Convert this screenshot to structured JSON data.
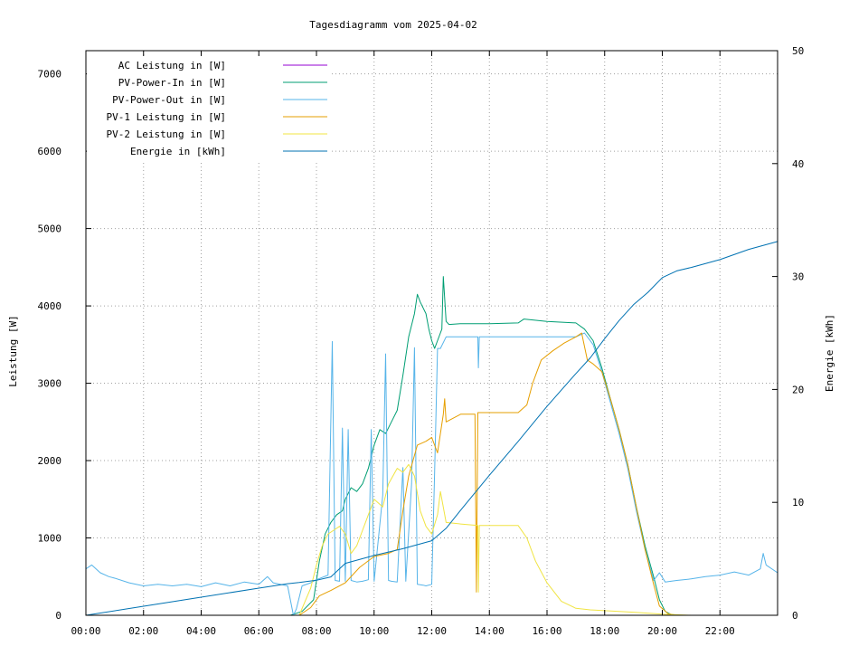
{
  "chart_data": {
    "type": "line",
    "title": "Tagesdiagramm vom 2025-04-02",
    "xlabel": "",
    "ylabel": "Leistung [W]",
    "y2label": "Energie [kWh]",
    "xlim_hours": [
      0,
      24
    ],
    "ylim": [
      0,
      7300
    ],
    "y2lim": [
      0,
      50
    ],
    "x_ticks": [
      "00:00",
      "02:00",
      "04:00",
      "06:00",
      "08:00",
      "10:00",
      "12:00",
      "14:00",
      "16:00",
      "18:00",
      "20:00",
      "22:00"
    ],
    "y_ticks": [
      0,
      1000,
      2000,
      3000,
      4000,
      5000,
      6000,
      7000
    ],
    "y2_ticks": [
      0,
      10,
      20,
      30,
      40,
      50
    ],
    "grid": true,
    "legend_position": "top-left",
    "series": [
      {
        "name": "AC Leistung in [W]",
        "color": "#9400d3",
        "axis": "y",
        "points": []
      },
      {
        "name": "PV-Power-In in [W]",
        "color": "#009e73",
        "axis": "y",
        "points": [
          [
            0,
            0
          ],
          [
            7.1,
            0
          ],
          [
            7.5,
            50
          ],
          [
            7.9,
            200
          ],
          [
            8.1,
            700
          ],
          [
            8.3,
            1050
          ],
          [
            8.5,
            1200
          ],
          [
            8.7,
            1300
          ],
          [
            8.9,
            1350
          ],
          [
            9.0,
            1500
          ],
          [
            9.2,
            1650
          ],
          [
            9.4,
            1600
          ],
          [
            9.6,
            1700
          ],
          [
            9.8,
            1900
          ],
          [
            10.0,
            2200
          ],
          [
            10.2,
            2400
          ],
          [
            10.4,
            2350
          ],
          [
            10.6,
            2500
          ],
          [
            10.8,
            2650
          ],
          [
            11.0,
            3100
          ],
          [
            11.2,
            3600
          ],
          [
            11.4,
            3900
          ],
          [
            11.5,
            4150
          ],
          [
            11.6,
            4050
          ],
          [
            11.8,
            3900
          ],
          [
            11.9,
            3700
          ],
          [
            12.0,
            3550
          ],
          [
            12.1,
            3450
          ],
          [
            12.2,
            3550
          ],
          [
            12.35,
            3700
          ],
          [
            12.4,
            4380
          ],
          [
            12.5,
            3800
          ],
          [
            12.6,
            3760
          ],
          [
            13.0,
            3770
          ],
          [
            14.0,
            3770
          ],
          [
            15.0,
            3780
          ],
          [
            15.2,
            3830
          ],
          [
            16.0,
            3800
          ],
          [
            17.0,
            3780
          ],
          [
            17.3,
            3700
          ],
          [
            17.6,
            3550
          ],
          [
            17.9,
            3200
          ],
          [
            18.2,
            2800
          ],
          [
            18.5,
            2400
          ],
          [
            18.8,
            1950
          ],
          [
            19.1,
            1400
          ],
          [
            19.4,
            900
          ],
          [
            19.7,
            500
          ],
          [
            19.9,
            200
          ],
          [
            20.1,
            50
          ],
          [
            20.3,
            10
          ],
          [
            20.6,
            0
          ],
          [
            24,
            0
          ]
        ]
      },
      {
        "name": "PV-Power-Out in [W]",
        "color": "#56b4e9",
        "axis": "y",
        "points": [
          [
            0,
            600
          ],
          [
            0.2,
            650
          ],
          [
            0.5,
            550
          ],
          [
            0.8,
            500
          ],
          [
            1.0,
            480
          ],
          [
            1.5,
            420
          ],
          [
            2.0,
            380
          ],
          [
            2.5,
            400
          ],
          [
            3.0,
            380
          ],
          [
            3.5,
            400
          ],
          [
            4.0,
            370
          ],
          [
            4.5,
            420
          ],
          [
            5.0,
            380
          ],
          [
            5.5,
            430
          ],
          [
            6.0,
            400
          ],
          [
            6.3,
            500
          ],
          [
            6.5,
            420
          ],
          [
            7.0,
            380
          ],
          [
            7.2,
            0
          ],
          [
            7.3,
            80
          ],
          [
            7.5,
            380
          ],
          [
            7.8,
            420
          ],
          [
            8.0,
            460
          ],
          [
            8.4,
            520
          ],
          [
            8.55,
            3540
          ],
          [
            8.65,
            450
          ],
          [
            8.8,
            440
          ],
          [
            8.9,
            2420
          ],
          [
            9.0,
            440
          ],
          [
            9.1,
            2400
          ],
          [
            9.2,
            450
          ],
          [
            9.4,
            430
          ],
          [
            9.6,
            440
          ],
          [
            9.8,
            460
          ],
          [
            9.9,
            2400
          ],
          [
            10.0,
            440
          ],
          [
            10.3,
            1550
          ],
          [
            10.4,
            3380
          ],
          [
            10.5,
            450
          ],
          [
            10.6,
            440
          ],
          [
            10.8,
            430
          ],
          [
            11.0,
            1910
          ],
          [
            11.1,
            440
          ],
          [
            11.3,
            1700
          ],
          [
            11.4,
            3460
          ],
          [
            11.5,
            400
          ],
          [
            11.7,
            390
          ],
          [
            11.8,
            380
          ],
          [
            12.0,
            400
          ],
          [
            12.1,
            1850
          ],
          [
            12.2,
            3450
          ],
          [
            12.3,
            3450
          ],
          [
            12.5,
            3600
          ],
          [
            13.0,
            3600
          ],
          [
            13.6,
            3600
          ],
          [
            13.62,
            3200
          ],
          [
            13.65,
            3600
          ],
          [
            14.0,
            3600
          ],
          [
            15.0,
            3600
          ],
          [
            16.0,
            3600
          ],
          [
            17.0,
            3600
          ],
          [
            17.3,
            3650
          ],
          [
            17.6,
            3500
          ],
          [
            17.9,
            3150
          ],
          [
            18.2,
            2750
          ],
          [
            18.5,
            2350
          ],
          [
            18.8,
            1900
          ],
          [
            19.1,
            1350
          ],
          [
            19.4,
            850
          ],
          [
            19.7,
            450
          ],
          [
            19.9,
            550
          ],
          [
            20.1,
            430
          ],
          [
            20.5,
            450
          ],
          [
            21.0,
            470
          ],
          [
            21.5,
            500
          ],
          [
            22.0,
            520
          ],
          [
            22.5,
            560
          ],
          [
            23.0,
            520
          ],
          [
            23.4,
            600
          ],
          [
            23.5,
            800
          ],
          [
            23.6,
            650
          ],
          [
            24,
            550
          ]
        ]
      },
      {
        "name": "PV-1 Leistung in [W]",
        "color": "#e69f00",
        "axis": "y",
        "points": [
          [
            0,
            0
          ],
          [
            7.4,
            0
          ],
          [
            7.8,
            100
          ],
          [
            8.1,
            250
          ],
          [
            8.5,
            320
          ],
          [
            9.0,
            420
          ],
          [
            9.5,
            620
          ],
          [
            10.0,
            760
          ],
          [
            10.5,
            800
          ],
          [
            10.8,
            850
          ],
          [
            11.0,
            1350
          ],
          [
            11.2,
            1800
          ],
          [
            11.5,
            2200
          ],
          [
            11.8,
            2250
          ],
          [
            12.0,
            2300
          ],
          [
            12.2,
            2100
          ],
          [
            12.4,
            2600
          ],
          [
            12.45,
            2800
          ],
          [
            12.5,
            2500
          ],
          [
            13.0,
            2600
          ],
          [
            13.5,
            2600
          ],
          [
            13.55,
            300
          ],
          [
            13.6,
            2620
          ],
          [
            14.0,
            2620
          ],
          [
            15.0,
            2620
          ],
          [
            15.3,
            2720
          ],
          [
            15.5,
            3000
          ],
          [
            15.8,
            3300
          ],
          [
            16.2,
            3420
          ],
          [
            16.6,
            3520
          ],
          [
            17.0,
            3600
          ],
          [
            17.2,
            3650
          ],
          [
            17.4,
            3300
          ],
          [
            17.6,
            3250
          ],
          [
            17.9,
            3150
          ],
          [
            18.2,
            2800
          ],
          [
            18.5,
            2400
          ],
          [
            18.8,
            1950
          ],
          [
            19.1,
            1400
          ],
          [
            19.4,
            850
          ],
          [
            19.7,
            400
          ],
          [
            19.9,
            120
          ],
          [
            20.2,
            20
          ],
          [
            20.5,
            0
          ],
          [
            24,
            0
          ]
        ]
      },
      {
        "name": "PV-2 Leistung in [W]",
        "color": "#f0e442",
        "axis": "y",
        "points": [
          [
            0,
            0
          ],
          [
            7.4,
            0
          ],
          [
            7.8,
            350
          ],
          [
            8.0,
            650
          ],
          [
            8.2,
            900
          ],
          [
            8.4,
            1050
          ],
          [
            8.6,
            1100
          ],
          [
            8.8,
            1150
          ],
          [
            9.0,
            1050
          ],
          [
            9.2,
            800
          ],
          [
            9.4,
            900
          ],
          [
            9.6,
            1100
          ],
          [
            9.8,
            1300
          ],
          [
            10.0,
            1500
          ],
          [
            10.3,
            1400
          ],
          [
            10.5,
            1700
          ],
          [
            10.8,
            1900
          ],
          [
            11.0,
            1850
          ],
          [
            11.2,
            1950
          ],
          [
            11.4,
            1800
          ],
          [
            11.6,
            1350
          ],
          [
            11.8,
            1150
          ],
          [
            12.0,
            1050
          ],
          [
            12.2,
            1300
          ],
          [
            12.3,
            1600
          ],
          [
            12.5,
            1200
          ],
          [
            13.0,
            1180
          ],
          [
            13.6,
            1160
          ],
          [
            13.62,
            300
          ],
          [
            13.65,
            1160
          ],
          [
            14.0,
            1160
          ],
          [
            15.0,
            1160
          ],
          [
            15.3,
            1000
          ],
          [
            15.6,
            700
          ],
          [
            16.0,
            420
          ],
          [
            16.5,
            180
          ],
          [
            17.0,
            90
          ],
          [
            17.5,
            70
          ],
          [
            18.0,
            60
          ],
          [
            19.0,
            40
          ],
          [
            20.0,
            15
          ],
          [
            21.0,
            0
          ],
          [
            24,
            0
          ]
        ]
      },
      {
        "name": "Energie in [kWh]",
        "color": "#0072b2",
        "axis": "y2",
        "points": [
          [
            0,
            0
          ],
          [
            2,
            0.8
          ],
          [
            4,
            1.6
          ],
          [
            6,
            2.4
          ],
          [
            7,
            2.8
          ],
          [
            7.4,
            2.9
          ],
          [
            8,
            3.1
          ],
          [
            8.5,
            3.4
          ],
          [
            9,
            4.6
          ],
          [
            10,
            5.3
          ],
          [
            11,
            5.9
          ],
          [
            12,
            6.6
          ],
          [
            12.5,
            7.7
          ],
          [
            13,
            9.3
          ],
          [
            14,
            12.4
          ],
          [
            15,
            15.4
          ],
          [
            16,
            18.5
          ],
          [
            17,
            21.4
          ],
          [
            17.5,
            22.8
          ],
          [
            18,
            24.5
          ],
          [
            18.5,
            26.1
          ],
          [
            19,
            27.5
          ],
          [
            19.5,
            28.6
          ],
          [
            20,
            29.9
          ],
          [
            20.5,
            30.5
          ],
          [
            21,
            30.8
          ],
          [
            22,
            31.5
          ],
          [
            23,
            32.4
          ],
          [
            24,
            33.1
          ]
        ]
      }
    ]
  }
}
